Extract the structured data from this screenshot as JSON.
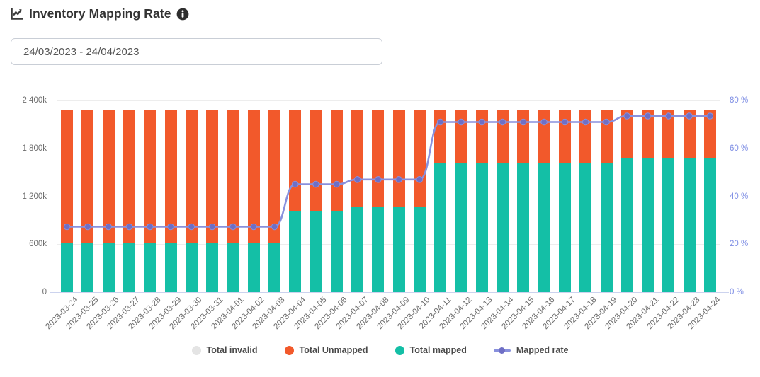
{
  "header": {
    "title": "Inventory Mapping Rate",
    "title_icon": "chart-line-icon",
    "info_icon": "info-circle-icon"
  },
  "daterange": {
    "value": "24/03/2023 - 24/04/2023"
  },
  "chart_data": {
    "type": "bar",
    "subtype": "stacked-bars-with-rate-line",
    "title": "Inventory Mapping Rate",
    "value_unit": "thousands (k) for bars, percent for line",
    "grid": true,
    "legend_position": "bottom",
    "categories": [
      "2023-03-24",
      "2023-03-25",
      "2023-03-26",
      "2023-03-27",
      "2023-03-28",
      "2023-03-29",
      "2023-03-30",
      "2023-03-31",
      "2023-04-01",
      "2023-04-02",
      "2023-04-03",
      "2023-04-04",
      "2023-04-05",
      "2023-04-06",
      "2023-04-07",
      "2023-04-08",
      "2023-04-09",
      "2023-04-10",
      "2023-04-11",
      "2023-04-12",
      "2023-04-13",
      "2023-04-14",
      "2023-04-15",
      "2023-04-16",
      "2023-04-17",
      "2023-04-18",
      "2023-04-19",
      "2023-04-20",
      "2023-04-21",
      "2023-04-22",
      "2023-04-23",
      "2023-04-24"
    ],
    "series": [
      {
        "name": "Total invalid",
        "type": "bar",
        "stack": true,
        "disabled": true,
        "color": "#e4e4e4",
        "values": [
          0,
          0,
          0,
          0,
          0,
          0,
          0,
          0,
          0,
          0,
          0,
          0,
          0,
          0,
          0,
          0,
          0,
          0,
          0,
          0,
          0,
          0,
          0,
          0,
          0,
          0,
          0,
          0,
          0,
          0,
          0,
          0
        ]
      },
      {
        "name": "Total Unmapped",
        "type": "bar",
        "stack": true,
        "color": "#f2592b",
        "values": [
          1655,
          1655,
          1655,
          1655,
          1655,
          1655,
          1655,
          1655,
          1655,
          1655,
          1655,
          1255,
          1255,
          1255,
          1215,
          1215,
          1215,
          1215,
          660,
          660,
          660,
          660,
          660,
          660,
          660,
          660,
          660,
          610,
          610,
          610,
          610,
          610
        ]
      },
      {
        "name": "Total mapped",
        "type": "bar",
        "stack": true,
        "color": "#14bfa6",
        "values": [
          620,
          620,
          620,
          620,
          620,
          620,
          620,
          620,
          620,
          620,
          620,
          1020,
          1020,
          1020,
          1060,
          1060,
          1060,
          1060,
          1615,
          1615,
          1615,
          1615,
          1615,
          1615,
          1615,
          1615,
          1615,
          1675,
          1675,
          1675,
          1675,
          1675
        ]
      },
      {
        "name": "Mapped rate",
        "type": "line",
        "axis": "right",
        "color": "#8890dd",
        "marker_color": "#6f6fc5",
        "values": [
          27.3,
          27.3,
          27.3,
          27.3,
          27.3,
          27.3,
          27.3,
          27.3,
          27.3,
          27.3,
          27.3,
          45,
          45,
          45,
          47,
          47,
          47,
          47,
          71,
          71,
          71,
          71,
          71,
          71,
          71,
          71,
          71,
          73.5,
          73.5,
          73.5,
          73.5,
          73.5
        ]
      }
    ],
    "left_axis": {
      "label_ticks": [
        "2 400k",
        "1 800k",
        "1 200k",
        "600k",
        "0"
      ],
      "min": 0,
      "max_k": 2400
    },
    "right_axis": {
      "label_ticks": [
        "80 %",
        "60 %",
        "40 %",
        "20 %",
        "0 %"
      ],
      "min": 0,
      "max_pct": 80
    },
    "legend": [
      {
        "label": "Total invalid",
        "marker": "circle",
        "color": "#e4e4e4"
      },
      {
        "label": "Total Unmapped",
        "marker": "circle",
        "color": "#f2592b"
      },
      {
        "label": "Total mapped",
        "marker": "circle",
        "color": "#14bfa6"
      },
      {
        "label": "Mapped rate",
        "marker": "line-dot",
        "color": "#8890dd",
        "dot_color": "#6f6fc5"
      }
    ]
  }
}
